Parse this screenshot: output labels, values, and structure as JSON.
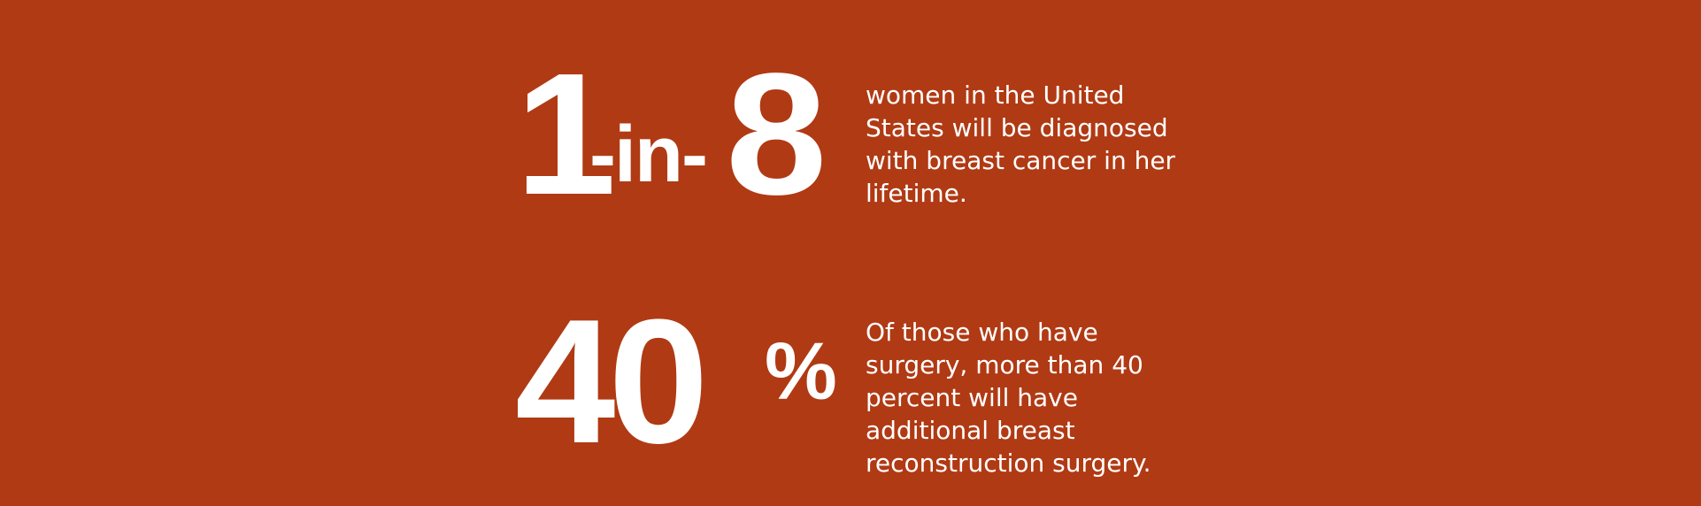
{
  "banner": {
    "background_color": "#b03a14",
    "text_color": "#ffffff"
  },
  "stats": [
    {
      "figure": {
        "first": "1",
        "middle": "-in-",
        "last": "8"
      },
      "description": "women in the United States will be diagnosed with breast cancer in her lifetime."
    },
    {
      "figure": {
        "number": "40",
        "suffix": "%"
      },
      "description": "Of those who have surgery, more than 40 percent will have additional breast reconstruction surgery."
    }
  ]
}
